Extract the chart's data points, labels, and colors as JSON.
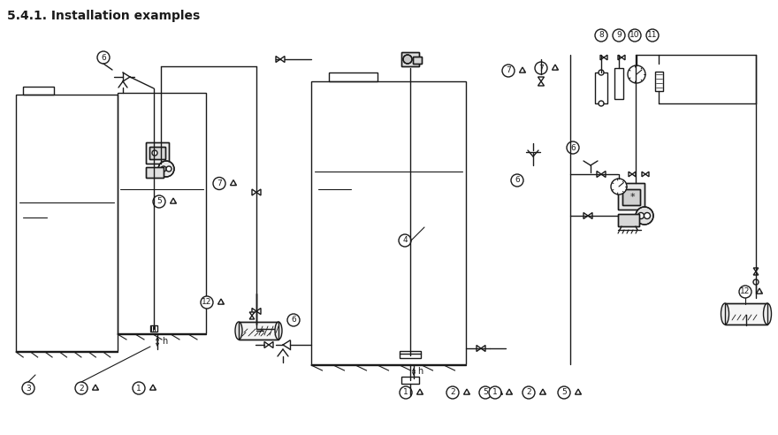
{
  "title": "5.4.1. Installation examples",
  "title_fontsize": 10,
  "title_fontweight": "bold",
  "bg_color": "#ffffff",
  "lc": "#1a1a1a",
  "lw": 1.0
}
